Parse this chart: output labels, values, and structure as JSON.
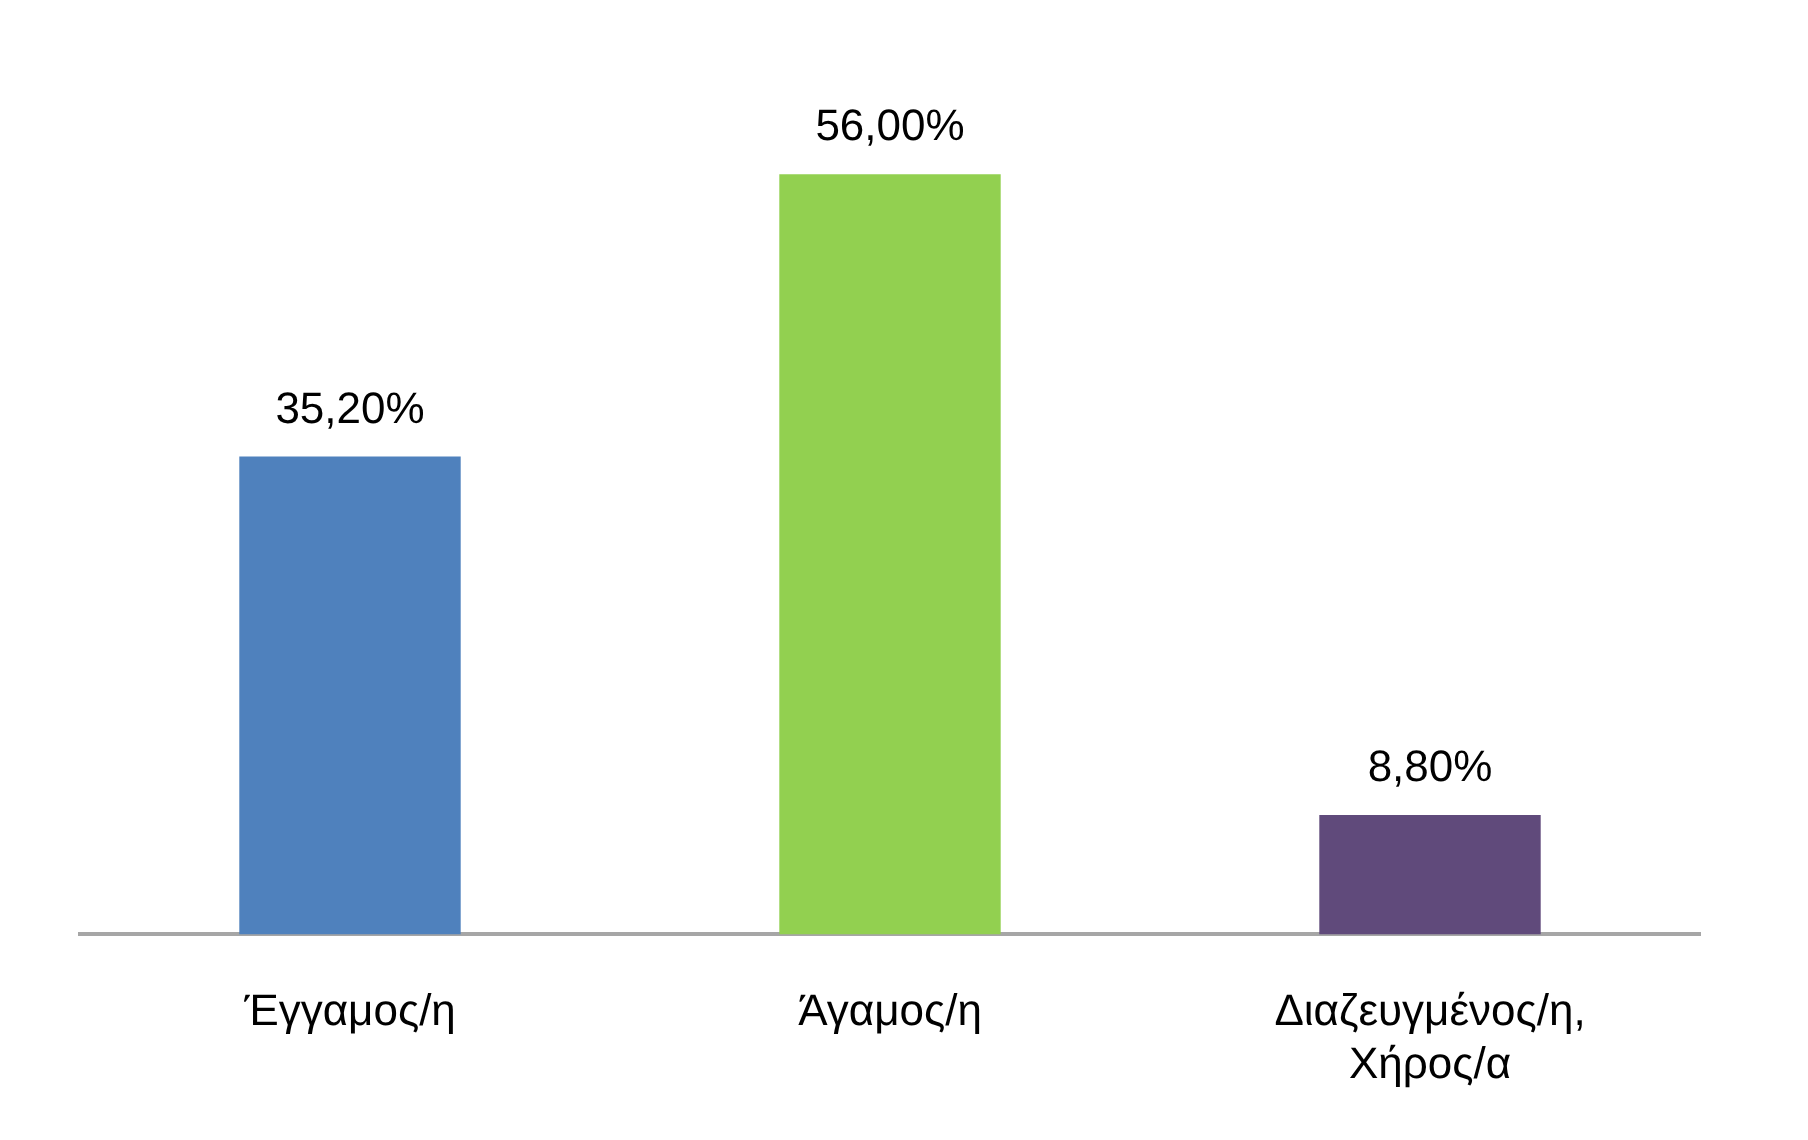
{
  "chart_data": {
    "type": "bar",
    "categories": [
      "Έγγαμος/η",
      "Άγαμος/η",
      "Διαζευγμένος/η, Χήρος/α"
    ],
    "values": [
      35.2,
      56.0,
      8.8
    ],
    "colors": [
      "#4f81bd",
      "#92d050",
      "#604a7b"
    ],
    "value_labels": [
      "35,20%",
      "56,00%",
      "8,80%"
    ],
    "tick_labels": "x"
  }
}
